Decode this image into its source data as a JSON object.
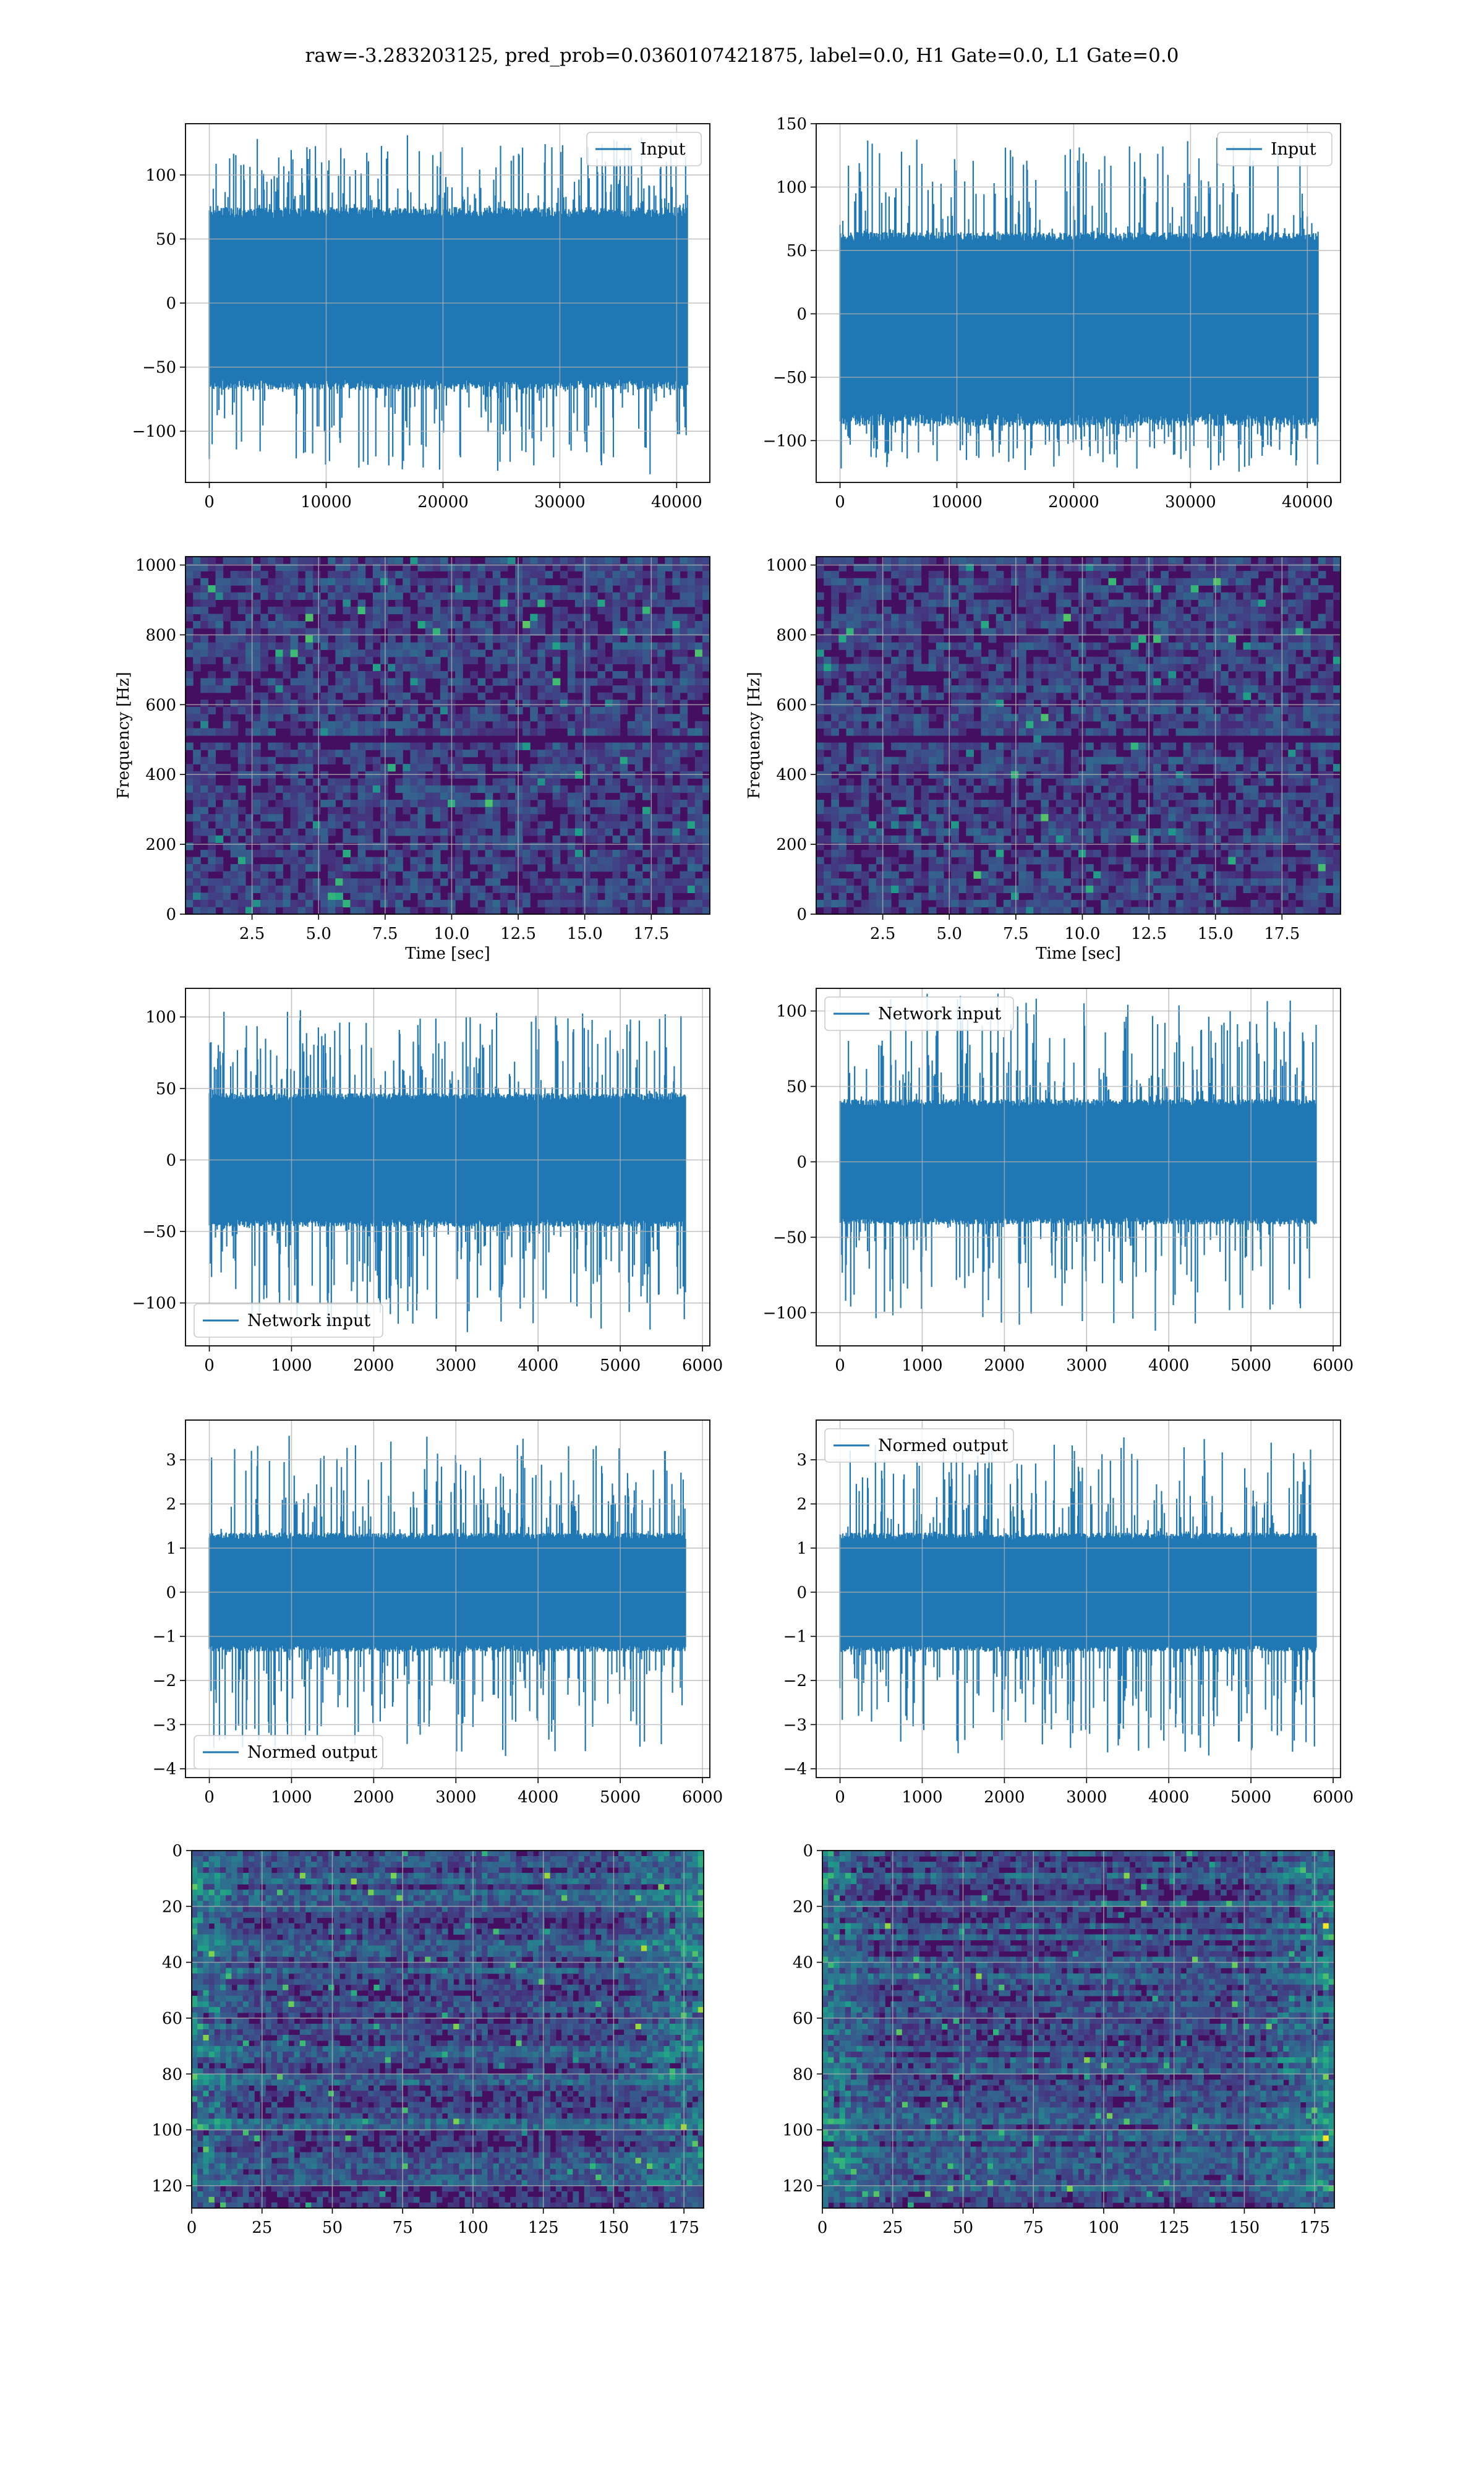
{
  "figure": {
    "suptitle": "raw=-3.283203125, pred_prob=0.0360107421875, label=0.0, H1 Gate=0.0, L1 Gate=0.0",
    "colors": {
      "line": "#1f77b4",
      "grid": "#b0b0b0",
      "frame": "#000000"
    }
  },
  "chart_data": [
    {
      "id": "p1",
      "type": "line",
      "legend": "Input",
      "legend_loc": "upper right",
      "xlim": [
        -2040,
        42840
      ],
      "ylim": [
        -140,
        140
      ],
      "xticks": [
        0,
        10000,
        20000,
        30000,
        40000
      ],
      "yticks": [
        -100,
        -50,
        0,
        50,
        100
      ],
      "series": [
        {
          "name": "Input",
          "n_points": 40960,
          "core_range": [
            -65,
            72
          ],
          "extremes_range": [
            -133,
            130
          ]
        }
      ]
    },
    {
      "id": "p2",
      "type": "line",
      "legend": "Input",
      "legend_loc": "upper right",
      "xlim": [
        -2040,
        42840
      ],
      "ylim": [
        -133,
        150
      ],
      "xticks": [
        0,
        10000,
        20000,
        30000,
        40000
      ],
      "yticks": [
        -100,
        -50,
        0,
        50,
        100,
        150
      ],
      "series": [
        {
          "name": "Input",
          "n_points": 40960,
          "core_range": [
            -85,
            62
          ],
          "extremes_range": [
            -123,
            140
          ]
        }
      ]
    },
    {
      "id": "p3",
      "type": "heatmap",
      "xlabel": "Time [sec]",
      "ylabel": "Frequency [Hz]",
      "colormap": "viridis",
      "xlim": [
        0,
        19.7
      ],
      "ylim": [
        0,
        1024
      ],
      "xticks": [
        2.5,
        5.0,
        7.5,
        10.0,
        12.5,
        15.0,
        17.5
      ],
      "yticks": [
        0,
        200,
        400,
        600,
        800,
        1000
      ]
    },
    {
      "id": "p4",
      "type": "heatmap",
      "xlabel": "Time [sec]",
      "ylabel": "Frequency [Hz]",
      "colormap": "viridis",
      "xlim": [
        0,
        19.7
      ],
      "ylim": [
        0,
        1024
      ],
      "xticks": [
        2.5,
        5.0,
        7.5,
        10.0,
        12.5,
        15.0,
        17.5
      ],
      "yticks": [
        0,
        200,
        400,
        600,
        800,
        1000
      ]
    },
    {
      "id": "p5",
      "type": "line",
      "legend": "Network input",
      "legend_loc": "lower left",
      "xlim": [
        -290,
        6090
      ],
      "ylim": [
        -130,
        120
      ],
      "xticks": [
        0,
        1000,
        2000,
        3000,
        4000,
        5000,
        6000
      ],
      "yticks": [
        -100,
        -50,
        0,
        50,
        100
      ],
      "series": [
        {
          "name": "Network input",
          "n_points": 5800,
          "core_range": [
            -45,
            45
          ],
          "extremes_range": [
            -120,
            105
          ]
        }
      ]
    },
    {
      "id": "p6",
      "type": "line",
      "legend": "Network input",
      "legend_loc": "upper left",
      "xlim": [
        -290,
        6090
      ],
      "ylim": [
        -122,
        115
      ],
      "xticks": [
        0,
        1000,
        2000,
        3000,
        4000,
        5000,
        6000
      ],
      "yticks": [
        -100,
        -50,
        0,
        50,
        100
      ],
      "series": [
        {
          "name": "Network input",
          "n_points": 5800,
          "core_range": [
            -40,
            40
          ],
          "extremes_range": [
            -112,
            112
          ]
        }
      ]
    },
    {
      "id": "p7",
      "type": "line",
      "legend": "Normed output",
      "legend_loc": "lower left",
      "xlim": [
        -290,
        6090
      ],
      "ylim": [
        -4.2,
        3.9
      ],
      "xticks": [
        0,
        1000,
        2000,
        3000,
        4000,
        5000,
        6000
      ],
      "yticks": [
        -4,
        -3,
        -2,
        -1,
        0,
        1,
        2,
        3
      ],
      "series": [
        {
          "name": "Normed output",
          "n_points": 5800,
          "core_range": [
            -1.3,
            1.3
          ],
          "extremes_range": [
            -3.7,
            3.5
          ]
        }
      ]
    },
    {
      "id": "p8",
      "type": "line",
      "legend": "Normed output",
      "legend_loc": "upper left",
      "xlim": [
        -290,
        6090
      ],
      "ylim": [
        -4.2,
        3.9
      ],
      "xticks": [
        0,
        1000,
        2000,
        3000,
        4000,
        5000,
        6000
      ],
      "yticks": [
        -4,
        -3,
        -2,
        -1,
        0,
        1,
        2,
        3
      ],
      "series": [
        {
          "name": "Normed output",
          "n_points": 5800,
          "core_range": [
            -1.3,
            1.3
          ],
          "extremes_range": [
            -3.7,
            3.6
          ]
        }
      ]
    },
    {
      "id": "p9",
      "type": "heatmap",
      "colormap": "viridis",
      "y_inverted": true,
      "xlim": [
        0,
        182
      ],
      "ylim": [
        0,
        128
      ],
      "xticks": [
        0,
        25,
        50,
        75,
        100,
        125,
        150,
        175
      ],
      "yticks": [
        0,
        20,
        40,
        60,
        80,
        100,
        120
      ]
    },
    {
      "id": "p10",
      "type": "heatmap",
      "colormap": "viridis",
      "y_inverted": true,
      "xlim": [
        0,
        182
      ],
      "ylim": [
        0,
        128
      ],
      "xticks": [
        0,
        25,
        50,
        75,
        100,
        125,
        150,
        175
      ],
      "yticks": [
        0,
        20,
        40,
        60,
        80,
        100,
        120
      ]
    }
  ]
}
